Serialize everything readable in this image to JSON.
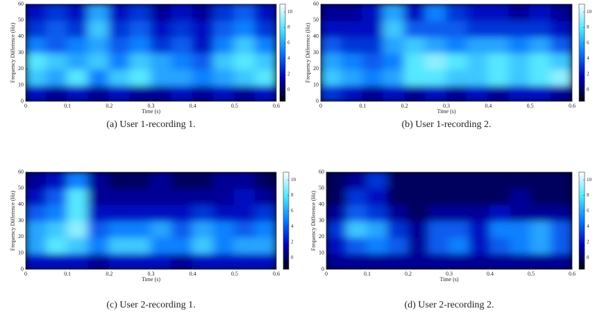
{
  "chart_data": [
    {
      "type": "heatmap",
      "caption": "(a)  User 1-recording 1.",
      "xlabel": "Time (s)",
      "ylabel": "Frequency Difference (Hz)",
      "xlim": [
        0,
        0.6
      ],
      "ylim": [
        0,
        60
      ],
      "xticks": [
        0,
        0.1,
        0.2,
        0.3,
        0.4,
        0.5,
        0.6
      ],
      "yticks": [
        0,
        10,
        20,
        30,
        40,
        50,
        60
      ],
      "clim": [
        -1.5,
        11
      ],
      "cticks": [
        0,
        2,
        4,
        6,
        8,
        10
      ],
      "colormap": [
        "#00000c",
        "#0000b8",
        "#0a78ff",
        "#4fe6ff",
        "#ffffff"
      ],
      "z": [
        [
          2,
          1,
          2,
          1,
          2,
          1,
          1,
          2,
          1,
          2,
          1,
          2
        ],
        [
          7,
          6,
          8,
          5,
          7,
          8,
          6,
          6,
          5,
          6,
          7,
          8
        ],
        [
          8,
          7,
          6,
          7,
          5,
          7,
          6,
          5,
          4,
          7,
          8,
          7
        ],
        [
          5,
          4,
          5,
          6,
          4,
          5,
          3,
          4,
          2,
          5,
          7,
          5
        ],
        [
          3,
          4,
          3,
          7,
          3,
          4,
          2,
          3,
          2,
          4,
          5,
          3
        ],
        [
          2,
          3,
          2,
          6,
          2,
          3,
          1,
          2,
          1,
          3,
          4,
          2
        ]
      ]
    },
    {
      "type": "heatmap",
      "caption": "(b)  User 1-recording 2.",
      "xlabel": "Time (s)",
      "ylabel": "Frequency Difference (Hz)",
      "xlim": [
        0,
        0.6
      ],
      "ylim": [
        0,
        60
      ],
      "xticks": [
        0,
        0.1,
        0.2,
        0.3,
        0.4,
        0.5,
        0.6
      ],
      "yticks": [
        0,
        10,
        20,
        30,
        40,
        50,
        60
      ],
      "clim": [
        -1.5,
        11
      ],
      "cticks": [
        0,
        2,
        4,
        6,
        8,
        10
      ],
      "colormap": [
        "#00000c",
        "#0000b8",
        "#0a78ff",
        "#4fe6ff",
        "#ffffff"
      ],
      "z": [
        [
          3,
          2,
          1,
          2,
          1,
          2,
          1,
          2,
          1,
          2,
          2,
          1
        ],
        [
          7,
          6,
          5,
          6,
          8,
          8,
          7,
          7,
          8,
          7,
          8,
          9
        ],
        [
          6,
          5,
          4,
          5,
          8,
          9,
          8,
          7,
          8,
          7,
          8,
          7
        ],
        [
          4,
          3,
          3,
          6,
          7,
          6,
          5,
          6,
          6,
          5,
          6,
          4
        ],
        [
          2,
          2,
          2,
          7,
          4,
          4,
          4,
          3,
          3,
          3,
          3,
          2
        ],
        [
          1,
          1,
          2,
          6,
          2,
          5,
          3,
          2,
          2,
          1,
          2,
          1
        ]
      ]
    },
    {
      "type": "heatmap",
      "caption": "(c)  User 2-recording 1.",
      "xlabel": "Time (s)",
      "ylabel": "Frequency Difference (Hz)",
      "xlim": [
        0,
        0.6
      ],
      "ylim": [
        0,
        60
      ],
      "xticks": [
        0,
        0.1,
        0.2,
        0.3,
        0.4,
        0.5,
        0.6
      ],
      "yticks": [
        0,
        10,
        20,
        30,
        40,
        50,
        60
      ],
      "clim": [
        -1.5,
        11
      ],
      "cticks": [
        0,
        2,
        4,
        6,
        8,
        10
      ],
      "colormap": [
        "#00000c",
        "#0000b8",
        "#0a78ff",
        "#4fe6ff",
        "#ffffff"
      ],
      "z": [
        [
          2,
          2,
          2,
          1,
          2,
          2,
          2,
          1,
          2,
          2,
          2,
          2
        ],
        [
          6,
          8,
          7,
          5,
          7,
          7,
          5,
          5,
          7,
          5,
          6,
          6
        ],
        [
          6,
          7,
          9,
          4,
          5,
          5,
          6,
          4,
          6,
          5,
          4,
          5
        ],
        [
          4,
          5,
          8,
          2,
          2,
          2,
          2,
          2,
          3,
          2,
          2,
          3
        ],
        [
          2,
          4,
          8,
          1,
          1,
          1,
          1,
          1,
          1,
          1,
          2,
          1
        ],
        [
          1,
          2,
          5,
          1,
          0,
          0,
          1,
          0,
          0,
          1,
          1,
          0
        ]
      ]
    },
    {
      "type": "heatmap",
      "caption": "(d)  User 2-recording 2.",
      "xlabel": "Time (s)",
      "ylabel": "Frequency Difference (Hz)",
      "xlim": [
        0,
        0.6
      ],
      "ylim": [
        0,
        60
      ],
      "xticks": [
        0,
        0.1,
        0.2,
        0.3,
        0.4,
        0.5,
        0.6
      ],
      "yticks": [
        0,
        10,
        20,
        30,
        40,
        50,
        60
      ],
      "clim": [
        -1.5,
        11
      ],
      "cticks": [
        0,
        2,
        4,
        6,
        8,
        10
      ],
      "colormap": [
        "#00000c",
        "#0000b8",
        "#0a78ff",
        "#4fe6ff",
        "#ffffff"
      ],
      "z": [
        [
          1,
          1,
          1,
          1,
          1,
          1,
          1,
          1,
          1,
          1,
          1,
          1
        ],
        [
          2,
          4,
          5,
          4,
          1,
          4,
          5,
          2,
          4,
          5,
          6,
          4
        ],
        [
          3,
          7,
          6,
          3,
          1,
          4,
          4,
          2,
          5,
          5,
          6,
          4
        ],
        [
          1,
          4,
          3,
          1,
          0,
          1,
          1,
          1,
          2,
          1,
          1,
          1
        ],
        [
          0,
          3,
          2,
          0,
          0,
          0,
          0,
          0,
          0,
          1,
          0,
          0
        ],
        [
          0,
          1,
          3,
          0,
          0,
          0,
          0,
          0,
          0,
          0,
          0,
          0
        ]
      ]
    }
  ]
}
